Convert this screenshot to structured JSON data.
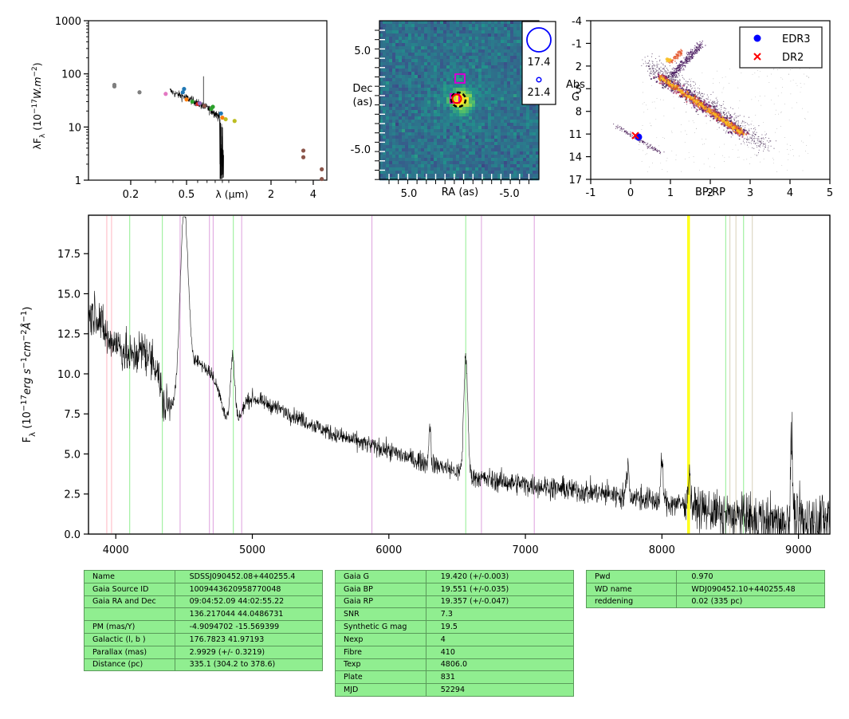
{
  "sed": {
    "ylabel_html": "λF<tspan baseline-shift='sub' font-size='9'>λ</tspan> (10<tspan baseline-shift='super' font-size='9'>−17</tspan><tspan font-style='italic'>W.m</tspan><tspan baseline-shift='super' font-size='9'>−2</tspan>)",
    "xlabel": "λ (μm)",
    "yticks": [
      "1000",
      "100",
      "10",
      "1"
    ],
    "xticks": [
      "0.2",
      "0.5",
      "2",
      "4"
    ]
  },
  "cutout": {
    "ylabel": [
      "Dec",
      "(as)"
    ],
    "xlabel": "RA (as)",
    "yticks": [
      "5.0",
      "-5.0"
    ],
    "xticks": [
      "5.0",
      "-5.0"
    ],
    "legend": [
      "17.4",
      "21.4"
    ]
  },
  "hr": {
    "ylabel": [
      "Abs",
      "G"
    ],
    "xlabel": "BP-RP",
    "yticks": [
      "-4",
      "-1",
      "2",
      "5",
      "8",
      "11",
      "14",
      "17"
    ],
    "xticks": [
      "-1",
      "0",
      "1",
      "2",
      "3",
      "4",
      "5"
    ],
    "legend": [
      {
        "label": "EDR3",
        "color": "#0000ff",
        "marker": "circle"
      },
      {
        "label": "DR2",
        "color": "#ff0000",
        "marker": "x"
      }
    ]
  },
  "chart_data": [
    {
      "type": "scatter",
      "panel": "SED",
      "xlabel": "λ (μm)",
      "ylabel": "λFλ (10^-17 W.m^-2)",
      "x_scale": "log",
      "y_scale": "log",
      "xlim": [
        0.1,
        5
      ],
      "ylim": [
        1,
        1000
      ],
      "points": [
        {
          "x": 0.153,
          "y": 58,
          "color": "#7f7f7f"
        },
        {
          "x": 0.153,
          "y": 62,
          "color": "#7f7f7f"
        },
        {
          "x": 0.231,
          "y": 45,
          "color": "#7f7f7f"
        },
        {
          "x": 0.355,
          "y": 42,
          "color": "#e377c2"
        },
        {
          "x": 0.47,
          "y": 45,
          "color": "#1f77b4"
        },
        {
          "x": 0.48,
          "y": 52,
          "color": "#1f77b4"
        },
        {
          "x": 0.5,
          "y": 33,
          "color": "#ff7f0e"
        },
        {
          "x": 0.55,
          "y": 30,
          "color": "#2ca02c"
        },
        {
          "x": 0.6,
          "y": 27,
          "color": "#d62728"
        },
        {
          "x": 0.62,
          "y": 28,
          "color": "#9467bd"
        },
        {
          "x": 0.67,
          "y": 25,
          "color": "#8c564b"
        },
        {
          "x": 0.75,
          "y": 22,
          "color": "#2ca02c"
        },
        {
          "x": 0.77,
          "y": 24,
          "color": "#2ca02c"
        },
        {
          "x": 0.88,
          "y": 18,
          "color": "#1f77b4"
        },
        {
          "x": 0.9,
          "y": 15,
          "color": "#ff7f0e"
        },
        {
          "x": 0.95,
          "y": 14,
          "color": "#bcbd22"
        },
        {
          "x": 1.1,
          "y": 13,
          "color": "#bcbd22"
        },
        {
          "x": 3.4,
          "y": 3.6,
          "color": "#8c564b"
        },
        {
          "x": 3.4,
          "y": 2.7,
          "color": "#8c564b"
        },
        {
          "x": 4.6,
          "y": 1.6,
          "color": "#8c564b"
        },
        {
          "x": 4.6,
          "y": 1.05,
          "color": "#8c564b"
        }
      ],
      "spectrum_line": {
        "color": "#000000",
        "x": [
          0.38,
          0.42,
          0.47,
          0.52,
          0.58,
          0.62,
          0.66,
          0.7,
          0.76,
          0.8,
          0.85,
          0.88,
          0.9,
          0.92
        ],
        "y": [
          48,
          42,
          38,
          34,
          30,
          27,
          25,
          23,
          20,
          18,
          16,
          14,
          12,
          10
        ]
      }
    },
    {
      "type": "heatmap",
      "panel": "cutout image",
      "xlabel": "RA (as)",
      "ylabel": "Dec (as)",
      "xlim": [
        8,
        -8
      ],
      "ylim": [
        -8,
        8
      ],
      "source_position": [
        0,
        0
      ],
      "legend_magnitudes": [
        17.4,
        21.4
      ]
    },
    {
      "type": "scatter",
      "panel": "HR diagram",
      "xlabel": "BP-RP",
      "ylabel": "Abs G",
      "xlim": [
        -1,
        5
      ],
      "ylim": [
        17,
        -4
      ],
      "series": [
        {
          "name": "EDR3",
          "x": [
            0.2
          ],
          "y": [
            11.4
          ],
          "color": "#0000ff"
        },
        {
          "name": "DR2",
          "x": [
            0.12
          ],
          "y": [
            11.2
          ],
          "color": "#ff0000"
        }
      ]
    },
    {
      "type": "line",
      "panel": "spectrum",
      "xlabel": "",
      "ylabel_html": "F<tspan baseline-shift='sub' font-size='10'>λ</tspan> (10<tspan baseline-shift='super' font-size='10'>−17</tspan><tspan font-style='italic'>erg s</tspan><tspan baseline-shift='super' font-size='10'>−1</tspan><tspan font-style='italic'>cm</tspan><tspan baseline-shift='super' font-size='10'>−2</tspan><tspan font-style='italic'>Å</tspan><tspan baseline-shift='super' font-size='10'>−1</tspan>)",
      "xlim": [
        3800,
        9230
      ],
      "ylim": [
        0,
        19.9
      ],
      "xticks": [
        "4000",
        "5000",
        "6000",
        "7000",
        "8000",
        "9000"
      ],
      "yticks": [
        "0.0",
        "2.5",
        "5.0",
        "7.5",
        "10.0",
        "12.5",
        "15.0",
        "17.5"
      ],
      "continuum": {
        "x": [
          3800,
          3850,
          3900,
          3950,
          4000,
          4050,
          4100,
          4200,
          4300,
          4350,
          4400,
          4450,
          4500,
          4600,
          4700,
          4750,
          4800,
          4850,
          4870,
          4900,
          4950,
          5000,
          5200,
          5400,
          5600,
          5800,
          6000,
          6200,
          6400,
          6550,
          6600,
          6800,
          7000,
          7200,
          7400,
          7600,
          7800,
          8000,
          8200,
          8400,
          8600,
          8800,
          9000,
          9230
        ],
        "y": [
          13.5,
          14.0,
          13.0,
          12.0,
          12.0,
          11.5,
          11.0,
          11.5,
          10.5,
          8.0,
          8.0,
          8.5,
          10.5,
          10.8,
          10.0,
          9.0,
          7.5,
          6.5,
          5.0,
          7.0,
          8.2,
          8.5,
          7.8,
          7.0,
          6.2,
          5.7,
          5.2,
          4.6,
          4.2,
          3.7,
          3.6,
          3.3,
          3.1,
          2.9,
          2.7,
          2.5,
          2.3,
          2.0,
          1.8,
          1.3,
          1.0,
          0.8,
          0.8,
          0.8
        ]
      },
      "features": [
        {
          "x": 4500,
          "y": 10.0,
          "width": 40
        },
        {
          "x": 4860,
          "y": 5.2,
          "width": 25
        },
        {
          "x": 6563,
          "y": 7.5,
          "width": 20
        },
        {
          "x": 6300,
          "y": 2.5,
          "width": 10
        },
        {
          "x": 7750,
          "y": 2.0,
          "width": 12
        },
        {
          "x": 8000,
          "y": 2.5,
          "width": 12
        },
        {
          "x": 8200,
          "y": 2.0,
          "width": 12
        },
        {
          "x": 8950,
          "y": 5.5,
          "width": 10
        }
      ],
      "reference_lines": [
        {
          "x": 3934,
          "color": "#ffb6c1"
        },
        {
          "x": 3969,
          "color": "#ffb6c1"
        },
        {
          "x": 4102,
          "color": "#90ee90"
        },
        {
          "x": 4341,
          "color": "#90ee90"
        },
        {
          "x": 4471,
          "color": "#dda0dd"
        },
        {
          "x": 4686,
          "color": "#dda0dd"
        },
        {
          "x": 4713,
          "color": "#dda0dd"
        },
        {
          "x": 4861,
          "color": "#90ee90"
        },
        {
          "x": 4922,
          "color": "#dda0dd"
        },
        {
          "x": 5876,
          "color": "#dda0dd"
        },
        {
          "x": 6563,
          "color": "#90ee90"
        },
        {
          "x": 6678,
          "color": "#dda0dd"
        },
        {
          "x": 7065,
          "color": "#dda0dd"
        },
        {
          "x": 8190,
          "color": "#ffff00"
        },
        {
          "x": 8200,
          "color": "#ffff00"
        },
        {
          "x": 8467,
          "color": "#90ee90"
        },
        {
          "x": 8498,
          "color": "#d8d0b8"
        },
        {
          "x": 8542,
          "color": "#d8d0b8"
        },
        {
          "x": 8598,
          "color": "#90ee90"
        },
        {
          "x": 8662,
          "color": "#d8d0b8"
        }
      ]
    }
  ],
  "tables": {
    "left": [
      [
        "Name",
        "SDSSJ090452.08+440255.4"
      ],
      [
        "Gaia Source ID",
        "1009443620958770048"
      ],
      [
        "Gaia RA and Dec",
        "09:04:52.09    44:02:55.22"
      ],
      [
        "",
        "136.217044    44.0486731"
      ],
      [
        "PM (mas/Y)",
        "-4.9094702    -15.569399"
      ],
      [
        "Galactic (l, b )",
        "176.7823    41.97193"
      ],
      [
        "Parallax (mas)",
        "2.9929 (+/- 0.3219)"
      ],
      [
        "Distance (pc)",
        "335.1 (304.2 to 378.6)"
      ]
    ],
    "middle": [
      [
        "Gaia G",
        "19.420 (+/-0.003)"
      ],
      [
        "Gaia BP",
        "19.551 (+/-0.035)"
      ],
      [
        "Gaia RP",
        "19.357 (+/-0.047)"
      ],
      [
        "SNR",
        "7.3"
      ],
      [
        "Synthetic G mag",
        "19.5"
      ],
      [
        "Nexp",
        "4"
      ],
      [
        "Fibre",
        "410"
      ],
      [
        "Texp",
        "4806.0"
      ],
      [
        "Plate",
        "831"
      ],
      [
        "MJD",
        "52294"
      ]
    ],
    "right": [
      [
        "Pwd",
        "0.970"
      ],
      [
        "WD name",
        "WDJ090452.10+440255.48"
      ],
      [
        "reddening",
        "0.02 (335 pc)"
      ]
    ]
  }
}
